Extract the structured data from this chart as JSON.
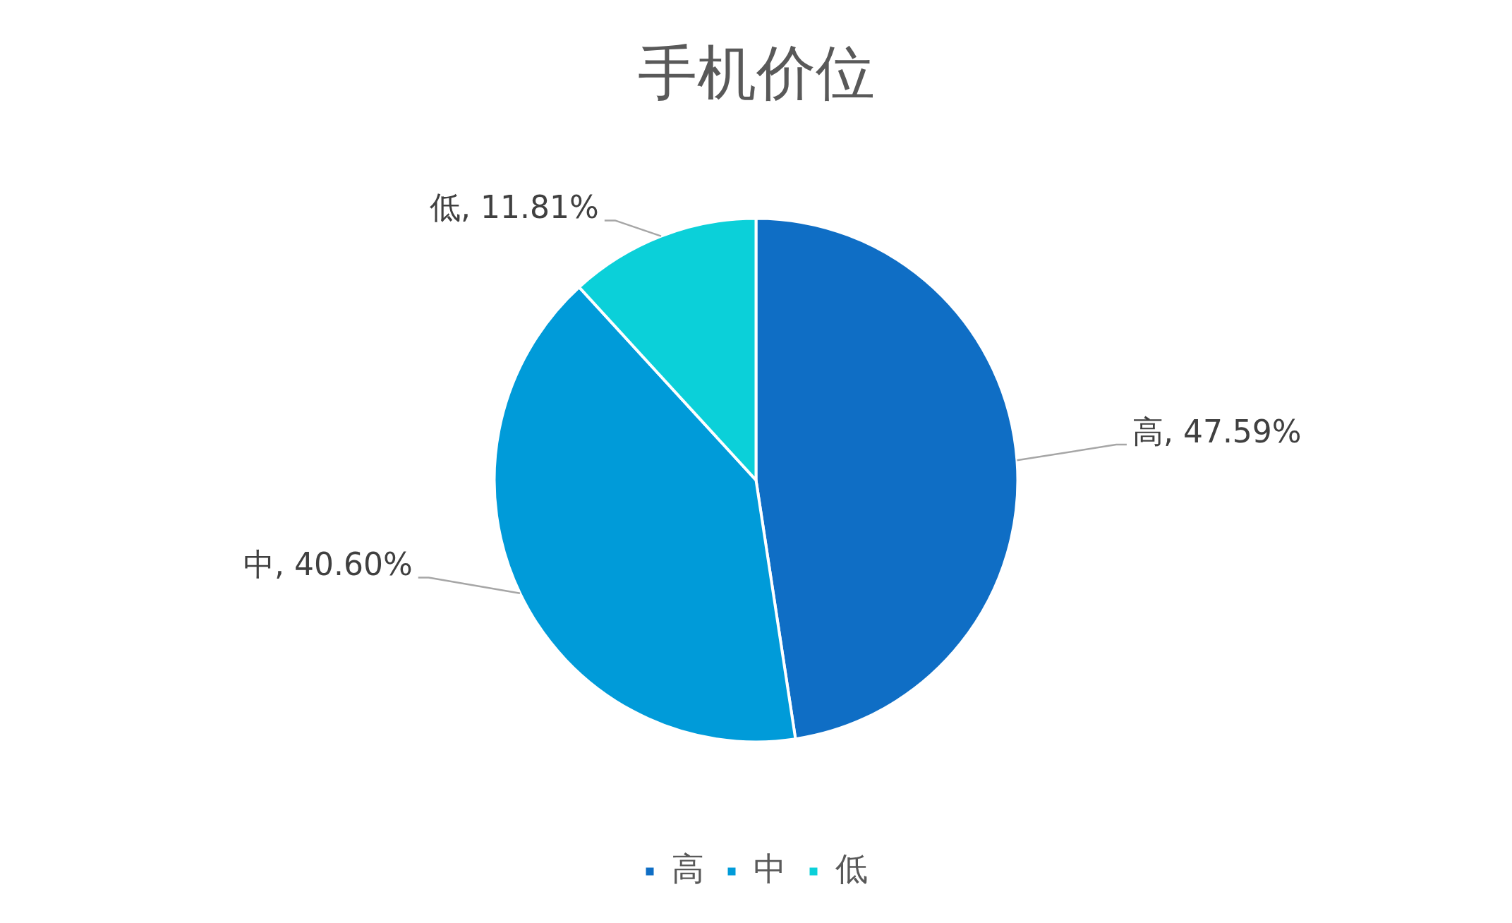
{
  "chart_data": {
    "type": "pie",
    "title": "手机价位",
    "categories": [
      "高",
      "中",
      "低"
    ],
    "values": [
      47.59,
      40.6,
      11.81
    ],
    "colors": [
      "#0f6ec5",
      "#009bd9",
      "#0bd0d9"
    ],
    "value_labels": [
      "高, 47.59%",
      "中, 40.60%",
      "低, 11.81%"
    ],
    "legend": "bottom"
  }
}
